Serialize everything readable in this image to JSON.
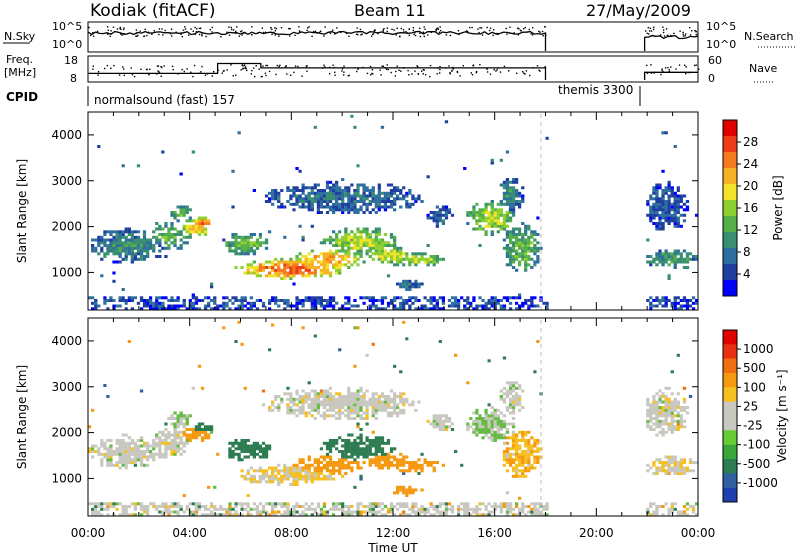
{
  "header": {
    "station": "Kodiak (fitACF)",
    "beam": "Beam 11",
    "date": "27/May/2009"
  },
  "summary_panels": {
    "nsky_label": "N.Sky",
    "nsky_ticks": [
      "10^5",
      "10^0"
    ],
    "nsearch_ticks": [
      "10^5",
      "10^0"
    ],
    "nsearch_label": "N.Search",
    "freq_label_line1": "Freq.",
    "freq_label_line2": "[MHz]",
    "freq_ticks": [
      "18",
      "8"
    ],
    "nave_ticks": [
      "60",
      "0"
    ],
    "nave_label": "Nave",
    "cpid_label": "CPID",
    "cpid_mode_1": "normalsound (fast) 157",
    "cpid_mode_2": "themis 3300"
  },
  "chart_data": [
    {
      "type": "heatmap",
      "quantity": "Power",
      "ylabel": "Slant Range [km]",
      "xlim_hours": [
        0,
        24
      ],
      "ylim": [
        180,
        4500
      ],
      "yticks": [
        "1000",
        "2000",
        "3000",
        "4000"
      ],
      "colorbar_label": "Power [dB]",
      "colorbar_ticks": [
        "28",
        "24",
        "20",
        "16",
        "12",
        "8",
        "4"
      ],
      "colorbar_colors": [
        "#0000ff",
        "#1f3fa0",
        "#2f6f9f",
        "#3a8f70",
        "#56b04a",
        "#8ed030",
        "#f2e22a",
        "#f5b222",
        "#f47a20",
        "#ec3d18",
        "#e00000"
      ],
      "data_gap_hours": [
        18.0,
        21.9
      ]
    },
    {
      "type": "heatmap",
      "quantity": "Velocity",
      "ylabel": "Slant Range [km]",
      "xlim_hours": [
        0,
        24
      ],
      "ylim": [
        180,
        4500
      ],
      "yticks": [
        "1000",
        "2000",
        "3000",
        "4000"
      ],
      "colorbar_label": "Velocity [m s⁻¹]",
      "colorbar_ticks": [
        "1000",
        "500",
        "100",
        "25",
        "-25",
        "-100",
        "-500",
        "-1000"
      ],
      "colorbar_colors": [
        "#2040b0",
        "#3060a0",
        "#2e7d52",
        "#39a83a",
        "#66cc33",
        "#c8c8c0",
        "#c8c8c0",
        "#f5c020",
        "#f59a10",
        "#f07010",
        "#e83010",
        "#e00000"
      ],
      "data_gap_hours": [
        18.0,
        21.9
      ]
    }
  ],
  "xaxis": {
    "ticks": [
      "00:00",
      "04:00",
      "08:00",
      "12:00",
      "16:00",
      "20:00",
      "00:00"
    ],
    "label": "Time UT"
  }
}
